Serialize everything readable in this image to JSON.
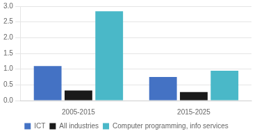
{
  "chart_data": {
    "type": "bar",
    "categories": [
      "2005-2015",
      "2015-2025"
    ],
    "series": [
      {
        "name": "ICT",
        "color": "#4472c4",
        "values": [
          1.1,
          0.75
        ]
      },
      {
        "name": "All industries",
        "color": "#1a1a1a",
        "values": [
          0.32,
          0.27
        ]
      },
      {
        "name": "Computer programming, info services",
        "color": "#4ab8c8",
        "values": [
          2.84,
          0.95
        ]
      }
    ],
    "ylim": [
      0,
      3.0
    ],
    "yticks": [
      {
        "value": 0,
        "label": "0.0"
      },
      0.5,
      {
        "value": 1,
        "label": "1.0"
      },
      1.5,
      {
        "value": 2,
        "label": "2.0"
      },
      2.5,
      {
        "value": 3,
        "label": "3.0"
      }
    ],
    "grid": true,
    "legend": "bottom"
  }
}
